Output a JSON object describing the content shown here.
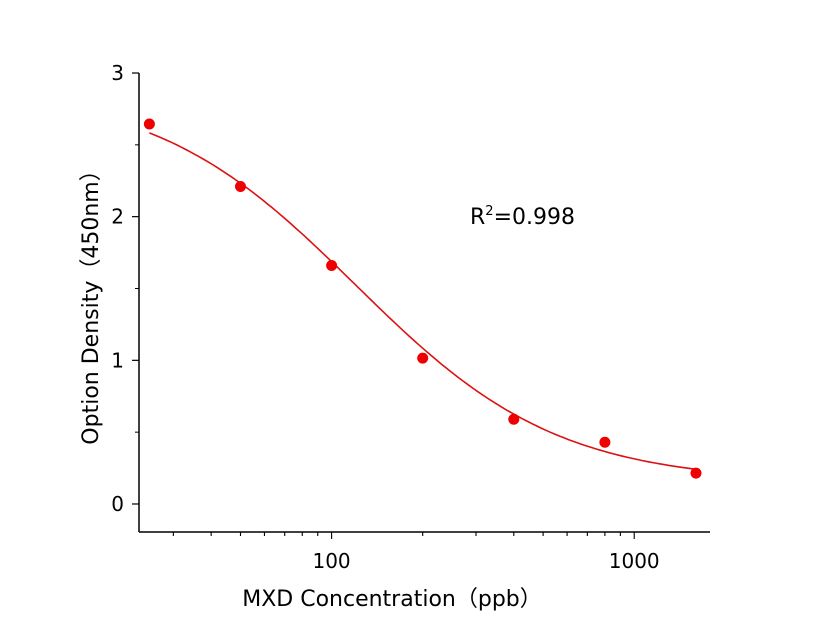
{
  "chart_data": {
    "type": "scatter",
    "title": "",
    "xlabel": "MXD Concentration（ppb）",
    "ylabel": "Option Density（450nm）",
    "x_scale": "log",
    "xlim": [
      23.1,
      1780
    ],
    "ylim": [
      -0.195,
      3
    ],
    "x_ticks": [
      100,
      1000
    ],
    "x_tick_labels": [
      "100",
      "1000"
    ],
    "y_ticks": [
      0,
      1,
      2,
      3
    ],
    "y_tick_labels": [
      "0",
      "1",
      "2",
      "3"
    ],
    "grid": false,
    "series": [
      {
        "x": [
          25,
          50,
          100,
          200,
          400,
          800,
          1600
        ],
        "y": [
          2.645,
          2.21,
          1.66,
          1.015,
          0.59,
          0.43,
          0.215
        ],
        "color": "#ee0000"
      }
    ],
    "fit": {
      "model": "4PL",
      "top": 2.9,
      "bottom": 0.15,
      "ec50": 120,
      "hill": 1.3,
      "color": "#dd1111"
    },
    "annotation": {
      "prefix": "R",
      "sup": "2",
      "text": "=0.998"
    }
  }
}
